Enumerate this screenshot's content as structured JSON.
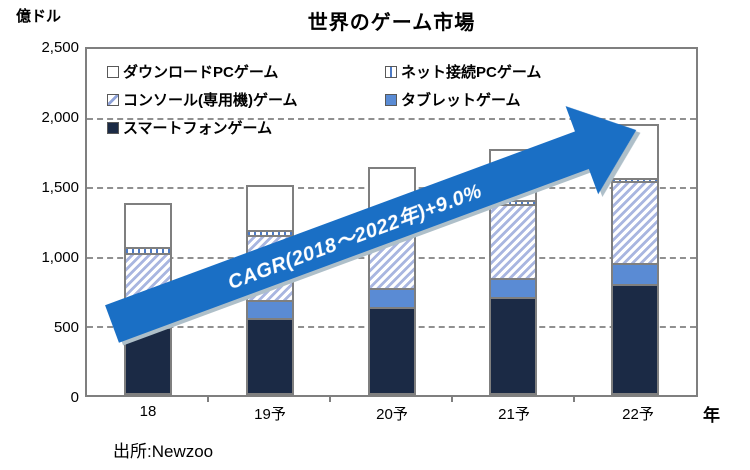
{
  "title": "世界のゲーム市場",
  "y_axis": {
    "unit": "億ドル",
    "ticks": [
      "2,500",
      "2,000",
      "1,500",
      "1,000",
      "500",
      "0"
    ]
  },
  "x_axis": {
    "labels": [
      "18",
      "19予",
      "20予",
      "21予",
      "22予"
    ],
    "suffix": "年"
  },
  "annotation": {
    "cagr_label": "CAGR(2018～2022年)+9.0%",
    "arrow_color": "#1A6FC5",
    "arrow_shadow_color": "#AEBFC9"
  },
  "source": "出所:Newzoo",
  "colors": {
    "bar_border": "#7F7F7F",
    "gridline": "#909090",
    "smartphone": "#1B2A45",
    "tablet": "#5A8BD4",
    "console_stripe": "#A9B6E0",
    "netpc_dash": "#4D7AC4",
    "download": "#FFFFFF"
  },
  "chart_data": {
    "type": "bar",
    "stacked": true,
    "title": "世界のゲーム市場",
    "ylabel": "億ドル",
    "xlabel": "年",
    "ylim": [
      0,
      2500
    ],
    "ytick_interval": 500,
    "grid": "dashed-horizontal",
    "legend_position": "top-inside",
    "categories": [
      "18",
      "19予",
      "20予",
      "21予",
      "22予"
    ],
    "series": [
      {
        "name": "スマートフォンゲーム",
        "key": "smartphone",
        "fill": "solid",
        "color": "#1B2A45",
        "values": [
          487,
          549,
          635,
          705,
          797
        ]
      },
      {
        "name": "タブレットゲーム",
        "key": "tablet",
        "fill": "solid",
        "color": "#5A8BD4",
        "values": [
          143,
          136,
          135,
          140,
          157
        ]
      },
      {
        "name": "コンソール(専用機)ゲーム",
        "key": "console",
        "fill": "diagonal-hatch",
        "color": "#A9B6E0",
        "values": [
          400,
          479,
          500,
          545,
          600
        ]
      },
      {
        "name": "ネット接続PCゲーム",
        "key": "netpc",
        "fill": "vertical-dashes",
        "color": "#4D7AC4",
        "values": [
          45,
          35,
          30,
          26,
          22
        ]
      },
      {
        "name": "ダウンロードPCゲーム",
        "key": "download",
        "fill": "white",
        "color": "#FFFFFF",
        "values": [
          312,
          322,
          346,
          365,
          384
        ]
      }
    ],
    "totals_estimated": [
      1387,
      1521,
      1646,
      1781,
      1960
    ],
    "annotation": "CAGR(2018～2022年)+9.0%"
  }
}
